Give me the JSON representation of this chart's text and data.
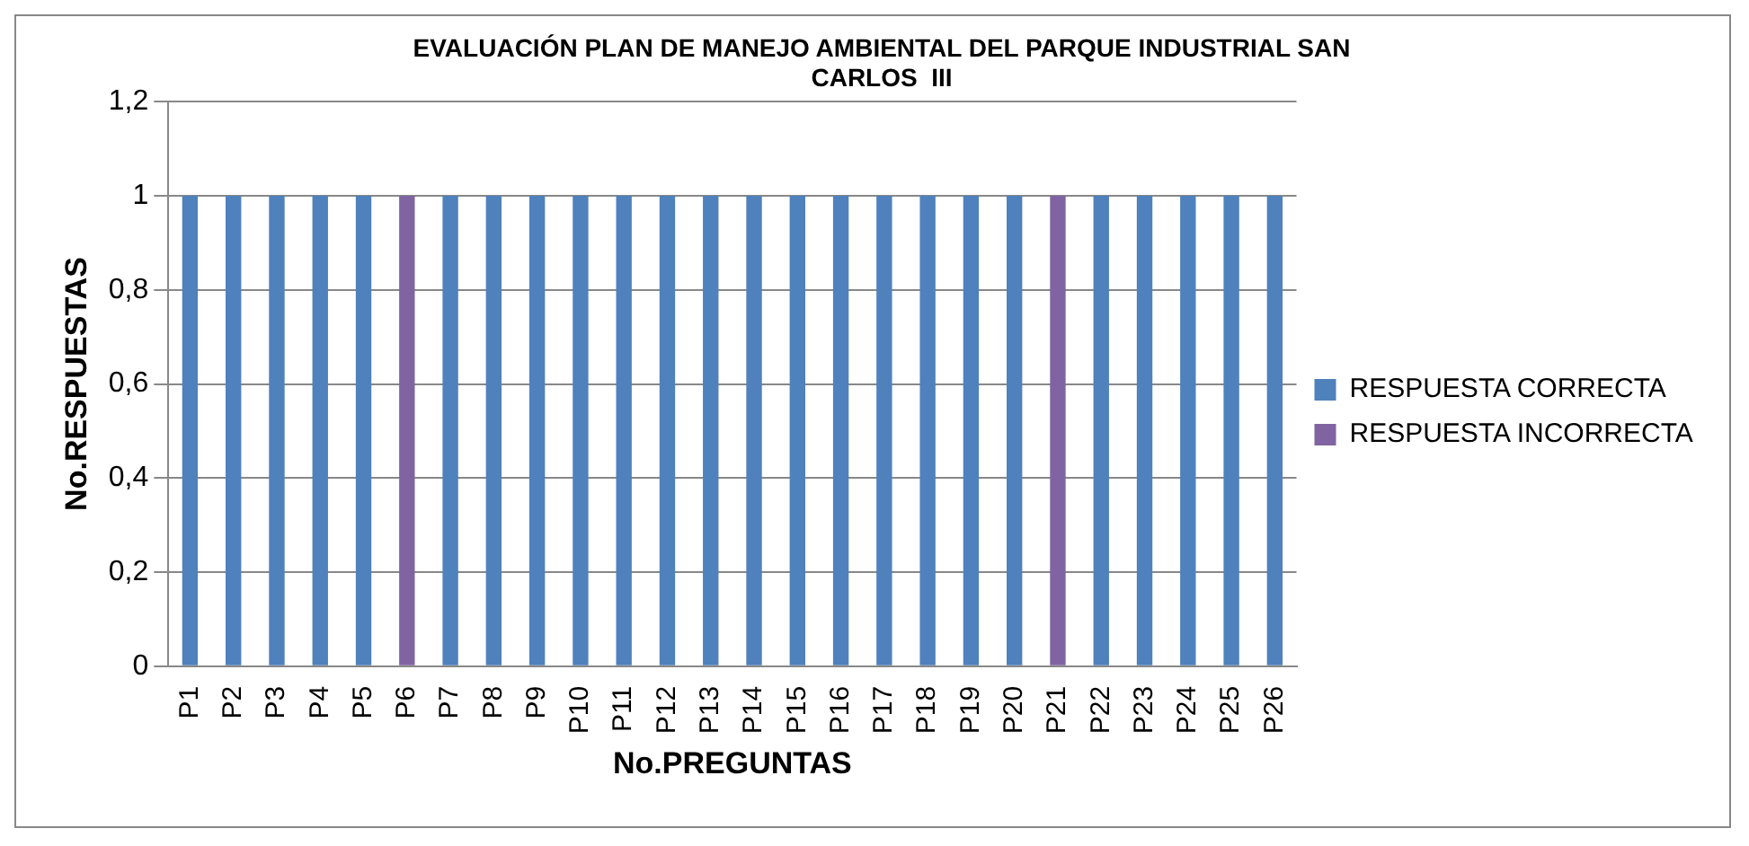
{
  "chart_data": {
    "type": "bar",
    "title": "EVALUACIÓN PLAN DE MANEJO AMBIENTAL DEL PARQUE INDUSTRIAL SAN CARLOS  III",
    "xlabel": "No.PREGUNTAS",
    "ylabel": "No.RESPUESTAS",
    "categories": [
      "P1",
      "P2",
      "P3",
      "P4",
      "P5",
      "P6",
      "P7",
      "P8",
      "P9",
      "P10",
      "P11",
      "P12",
      "P13",
      "P14",
      "P15",
      "P16",
      "P17",
      "P18",
      "P19",
      "P20",
      "P21",
      "P22",
      "P23",
      "P24",
      "P25",
      "P26"
    ],
    "stacked": true,
    "series": [
      {
        "name": "RESPUESTA CORRECTA",
        "color": "#4f81bd",
        "values": [
          1,
          1,
          1,
          1,
          1,
          null,
          1,
          1,
          1,
          1,
          1,
          1,
          1,
          1,
          1,
          1,
          1,
          1,
          1,
          1,
          null,
          1,
          1,
          1,
          1,
          1
        ]
      },
      {
        "name": "RESPUESTA INCORRECTA",
        "color": "#8064a2",
        "values": [
          null,
          null,
          null,
          null,
          null,
          1,
          null,
          null,
          null,
          null,
          null,
          null,
          null,
          null,
          null,
          null,
          null,
          null,
          null,
          null,
          1,
          null,
          null,
          null,
          null,
          null
        ]
      }
    ],
    "ylim": [
      0,
      1.2
    ],
    "yticks": [
      0,
      {
        "value": 0.2,
        "label": "0,2"
      },
      {
        "value": 0.4,
        "label": "0,4"
      },
      {
        "value": 0.6,
        "label": "0,6"
      },
      {
        "value": 0.8,
        "label": "0,8"
      },
      1,
      {
        "value": 1.2,
        "label": "1,2"
      }
    ],
    "grid": "y",
    "legend": "right"
  }
}
